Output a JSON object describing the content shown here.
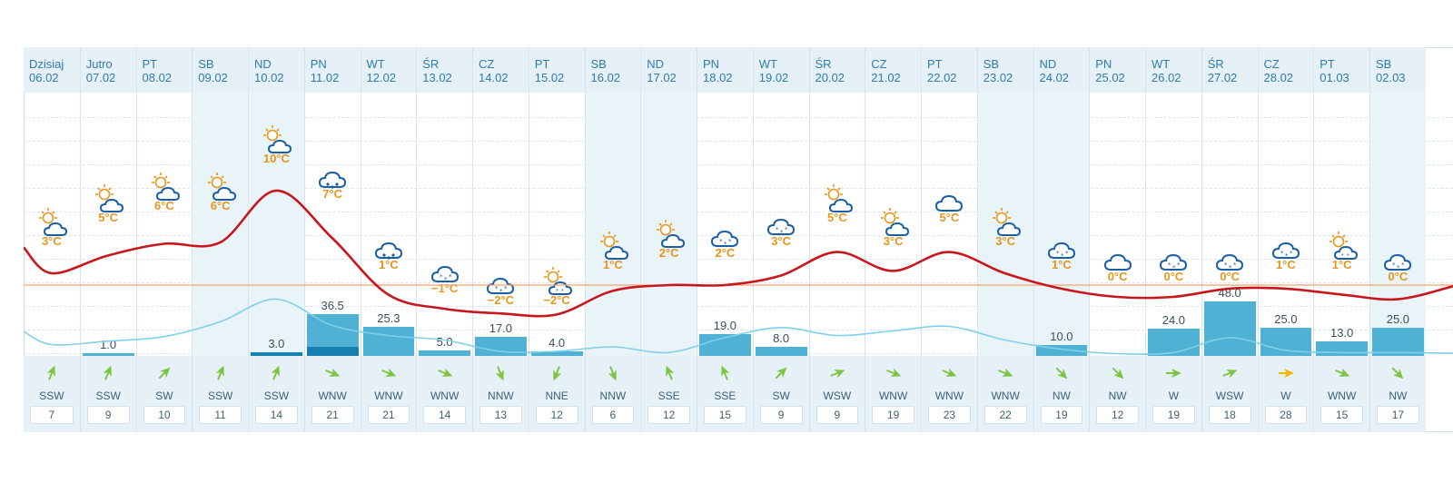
{
  "colors": {
    "temp_line": "#c8161d",
    "precip_line": "#7fd0ea",
    "zero_line": "#f2a56e",
    "bar": "#4fb1d3",
    "bar_dark": "#1581b0",
    "temp_label": "#e8951a",
    "header_text": "#2f7ab0"
  },
  "days": [
    {
      "day": "Dzisiaj",
      "date": "06.02",
      "weekend": false,
      "icon": "sun-cloud-icon",
      "temp": "3°C",
      "temp_value": 3,
      "precip": null,
      "precip_label": "",
      "wind_dir": "SSW",
      "wind_speed": "7",
      "wind_deg": 202
    },
    {
      "day": "Jutro",
      "date": "07.02",
      "weekend": false,
      "icon": "sun-cloud-icon",
      "temp": "5°C",
      "temp_value": 5,
      "precip": 1.0,
      "precip_label": "1.0",
      "wind_dir": "SSW",
      "wind_speed": "9",
      "wind_deg": 202
    },
    {
      "day": "PT",
      "date": "08.02",
      "weekend": false,
      "icon": "sun-cloud-icon",
      "temp": "6°C",
      "temp_value": 6,
      "precip": null,
      "precip_label": "",
      "wind_dir": "SW",
      "wind_speed": "10",
      "wind_deg": 225
    },
    {
      "day": "SB",
      "date": "09.02",
      "weekend": true,
      "icon": "sun-cloud-icon",
      "temp": "6°C",
      "temp_value": 6,
      "precip": null,
      "precip_label": "",
      "wind_dir": "SSW",
      "wind_speed": "11",
      "wind_deg": 202
    },
    {
      "day": "ND",
      "date": "10.02",
      "weekend": true,
      "icon": "sun-cloud-icon",
      "temp": "10°C",
      "temp_value": 10,
      "precip": 3.0,
      "precip_label": "3.0",
      "precip_dark": 3.0,
      "wind_dir": "SSW",
      "wind_speed": "14",
      "wind_deg": 202
    },
    {
      "day": "PN",
      "date": "11.02",
      "weekend": false,
      "icon": "cloud-rain-snow-icon",
      "temp": "7°C",
      "temp_value": 7,
      "precip": 36.5,
      "precip_label": "36.5",
      "precip_dark": 8,
      "wind_dir": "WNW",
      "wind_speed": "21",
      "wind_deg": 292
    },
    {
      "day": "WT",
      "date": "12.02",
      "weekend": false,
      "icon": "cloud-rain-snow-icon",
      "temp": "1°C",
      "temp_value": 1,
      "precip": 25.3,
      "precip_label": "25.3",
      "wind_dir": "WNW",
      "wind_speed": "21",
      "wind_deg": 292
    },
    {
      "day": "ŚR",
      "date": "13.02",
      "weekend": false,
      "icon": "cloud-snow-icon",
      "temp": "−1°C",
      "temp_value": -1,
      "precip": 5.0,
      "precip_label": "5.0",
      "wind_dir": "WNW",
      "wind_speed": "14",
      "wind_deg": 292
    },
    {
      "day": "CZ",
      "date": "14.02",
      "weekend": false,
      "icon": "cloud-snow-icon",
      "temp": "−2°C",
      "temp_value": -2,
      "precip": 17.0,
      "precip_label": "17.0",
      "wind_dir": "NNW",
      "wind_speed": "13",
      "wind_deg": 338
    },
    {
      "day": "PT",
      "date": "15.02",
      "weekend": false,
      "icon": "sun-cloud-snow-icon",
      "temp": "−2°C",
      "temp_value": -2,
      "precip": 4.0,
      "precip_label": "4.0",
      "wind_dir": "NNE",
      "wind_speed": "12",
      "wind_deg": 22
    },
    {
      "day": "SB",
      "date": "16.02",
      "weekend": true,
      "icon": "sun-cloud-icon",
      "temp": "1°C",
      "temp_value": 1,
      "precip": null,
      "precip_label": "",
      "wind_dir": "NNW",
      "wind_speed": "6",
      "wind_deg": 338
    },
    {
      "day": "ND",
      "date": "17.02",
      "weekend": true,
      "icon": "sun-cloud-icon",
      "temp": "2°C",
      "temp_value": 2,
      "precip": null,
      "precip_label": "",
      "wind_dir": "SSE",
      "wind_speed": "12",
      "wind_deg": 158
    },
    {
      "day": "PN",
      "date": "18.02",
      "weekend": false,
      "icon": "cloud-snow-icon",
      "temp": "2°C",
      "temp_value": 2,
      "precip": 19.0,
      "precip_label": "19.0",
      "wind_dir": "SSE",
      "wind_speed": "15",
      "wind_deg": 158
    },
    {
      "day": "WT",
      "date": "19.02",
      "weekend": false,
      "icon": "cloud-snow-icon",
      "temp": "3°C",
      "temp_value": 3,
      "precip": 8.0,
      "precip_label": "8.0",
      "wind_dir": "SW",
      "wind_speed": "9",
      "wind_deg": 225
    },
    {
      "day": "ŚR",
      "date": "20.02",
      "weekend": false,
      "icon": "sun-cloud-icon",
      "temp": "5°C",
      "temp_value": 5,
      "precip": null,
      "precip_label": "",
      "wind_dir": "WSW",
      "wind_speed": "9",
      "wind_deg": 248
    },
    {
      "day": "CZ",
      "date": "21.02",
      "weekend": false,
      "icon": "sun-cloud-icon",
      "temp": "3°C",
      "temp_value": 3,
      "precip": null,
      "precip_label": "",
      "wind_dir": "WNW",
      "wind_speed": "19",
      "wind_deg": 292
    },
    {
      "day": "PT",
      "date": "22.02",
      "weekend": false,
      "icon": "cloud-icon",
      "temp": "5°C",
      "temp_value": 5,
      "precip": null,
      "precip_label": "",
      "wind_dir": "WNW",
      "wind_speed": "23",
      "wind_deg": 292
    },
    {
      "day": "SB",
      "date": "23.02",
      "weekend": true,
      "icon": "sun-cloud-icon",
      "temp": "3°C",
      "temp_value": 3,
      "precip": null,
      "precip_label": "",
      "wind_dir": "WNW",
      "wind_speed": "22",
      "wind_deg": 292
    },
    {
      "day": "ND",
      "date": "24.02",
      "weekend": true,
      "icon": "cloud-snow-icon",
      "temp": "1°C",
      "temp_value": 1,
      "precip": 10.0,
      "precip_label": "10.0",
      "wind_dir": "NW",
      "wind_speed": "19",
      "wind_deg": 315
    },
    {
      "day": "PN",
      "date": "25.02",
      "weekend": false,
      "icon": "cloud-icon",
      "temp": "0°C",
      "temp_value": 0,
      "precip": null,
      "precip_label": "",
      "wind_dir": "NW",
      "wind_speed": "12",
      "wind_deg": 315
    },
    {
      "day": "WT",
      "date": "26.02",
      "weekend": false,
      "icon": "cloud-snow-icon",
      "temp": "0°C",
      "temp_value": 0,
      "precip": 24.0,
      "precip_label": "24.0",
      "wind_dir": "W",
      "wind_speed": "19",
      "wind_deg": 270
    },
    {
      "day": "ŚR",
      "date": "27.02",
      "weekend": false,
      "icon": "cloud-snow-icon",
      "temp": "0°C",
      "temp_value": 0,
      "precip": 48.0,
      "precip_label": "48.0",
      "wind_dir": "WSW",
      "wind_speed": "18",
      "wind_deg": 248
    },
    {
      "day": "CZ",
      "date": "28.02",
      "weekend": false,
      "icon": "cloud-snow-icon",
      "temp": "1°C",
      "temp_value": 1,
      "precip": 25.0,
      "precip_label": "25.0",
      "wind_dir": "W",
      "wind_speed": "28",
      "wind_deg": 270,
      "wind_strong": true
    },
    {
      "day": "PT",
      "date": "01.03",
      "weekend": false,
      "icon": "sun-cloud-snow-icon",
      "temp": "1°C",
      "temp_value": 1,
      "precip": 13.0,
      "precip_label": "13.0",
      "wind_dir": "WNW",
      "wind_speed": "15",
      "wind_deg": 292
    },
    {
      "day": "SB",
      "date": "02.03",
      "weekend": true,
      "icon": "cloud-snow-icon",
      "temp": "0°C",
      "temp_value": 0,
      "precip": 25.0,
      "precip_label": "25.0",
      "wind_dir": "NW",
      "wind_speed": "17",
      "wind_deg": 315
    }
  ],
  "temp_curve": [
    1.0,
    2.5,
    3.5,
    3.6,
    8.0,
    4.0,
    -0.8,
    -2.0,
    -2.4,
    -2.5,
    -0.5,
    0.0,
    0.0,
    0.8,
    2.8,
    1.2,
    2.8,
    1.0,
    -0.3,
    -1.0,
    -1.0,
    -0.3,
    -0.3,
    -0.8,
    -1.2
  ],
  "precip_curve": [
    10,
    13,
    17,
    30,
    50,
    27,
    18,
    14,
    4,
    4,
    8,
    3,
    16,
    25,
    18,
    22,
    26,
    14,
    6,
    2,
    3,
    16,
    5,
    3,
    3
  ]
}
